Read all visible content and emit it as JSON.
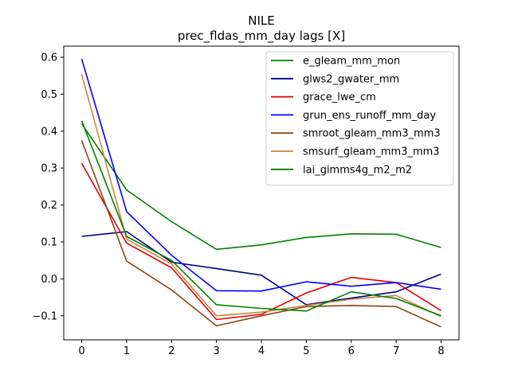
{
  "chart_data": {
    "type": "line",
    "title": "NILE",
    "subtitle": "prec_fldas_mm_day lags [X]",
    "xlabel": "",
    "ylabel": "",
    "x": [
      0,
      1,
      2,
      3,
      4,
      5,
      6,
      7,
      8
    ],
    "xlim": [
      -0.4,
      8.4
    ],
    "ylim": [
      -0.165,
      0.63
    ],
    "xticks": [
      0,
      1,
      2,
      3,
      4,
      5,
      6,
      7,
      8
    ],
    "yticks": [
      -0.1,
      0.0,
      0.1,
      0.2,
      0.3,
      0.4,
      0.5,
      0.6
    ],
    "ytick_labels": [
      "−0.1",
      "0.0",
      "0.1",
      "0.2",
      "0.3",
      "0.4",
      "0.5",
      "0.6"
    ],
    "grid": false,
    "legend_position": "top-right",
    "series": [
      {
        "name": "e_gleam_mm_mon",
        "color": "#008000",
        "values": [
          0.42,
          0.241,
          0.155,
          0.08,
          0.092,
          0.112,
          0.122,
          0.121,
          0.085
        ]
      },
      {
        "name": "glws2_gwater_mm",
        "color": "#00008b",
        "values": [
          0.115,
          0.128,
          0.045,
          0.028,
          0.01,
          -0.07,
          -0.052,
          -0.035,
          0.013
        ]
      },
      {
        "name": "grace_lwe_cm",
        "color": "#e00000",
        "values": [
          0.313,
          0.097,
          0.03,
          -0.11,
          -0.096,
          -0.038,
          0.004,
          -0.01,
          -0.086
        ]
      },
      {
        "name": "grun_ens_runoff_mm_day",
        "color": "#0000ff",
        "values": [
          0.596,
          0.182,
          0.064,
          -0.032,
          -0.033,
          -0.008,
          -0.02,
          -0.01,
          -0.028
        ]
      },
      {
        "name": "smroot_gleam_mm3_mm3",
        "color": "#8b4513",
        "values": [
          0.375,
          0.048,
          -0.03,
          -0.127,
          -0.1,
          -0.075,
          -0.072,
          -0.075,
          -0.13
        ]
      },
      {
        "name": "smsurf_gleam_mm3_mm3",
        "color": "#cd853f",
        "values": [
          0.554,
          0.108,
          0.04,
          -0.1,
          -0.09,
          -0.072,
          -0.055,
          -0.045,
          -0.102
        ]
      },
      {
        "name": "lai_gimms4g_m2_m2",
        "color": "#008000",
        "values": [
          0.428,
          0.115,
          0.05,
          -0.07,
          -0.08,
          -0.087,
          -0.035,
          -0.053,
          -0.1
        ]
      }
    ]
  }
}
